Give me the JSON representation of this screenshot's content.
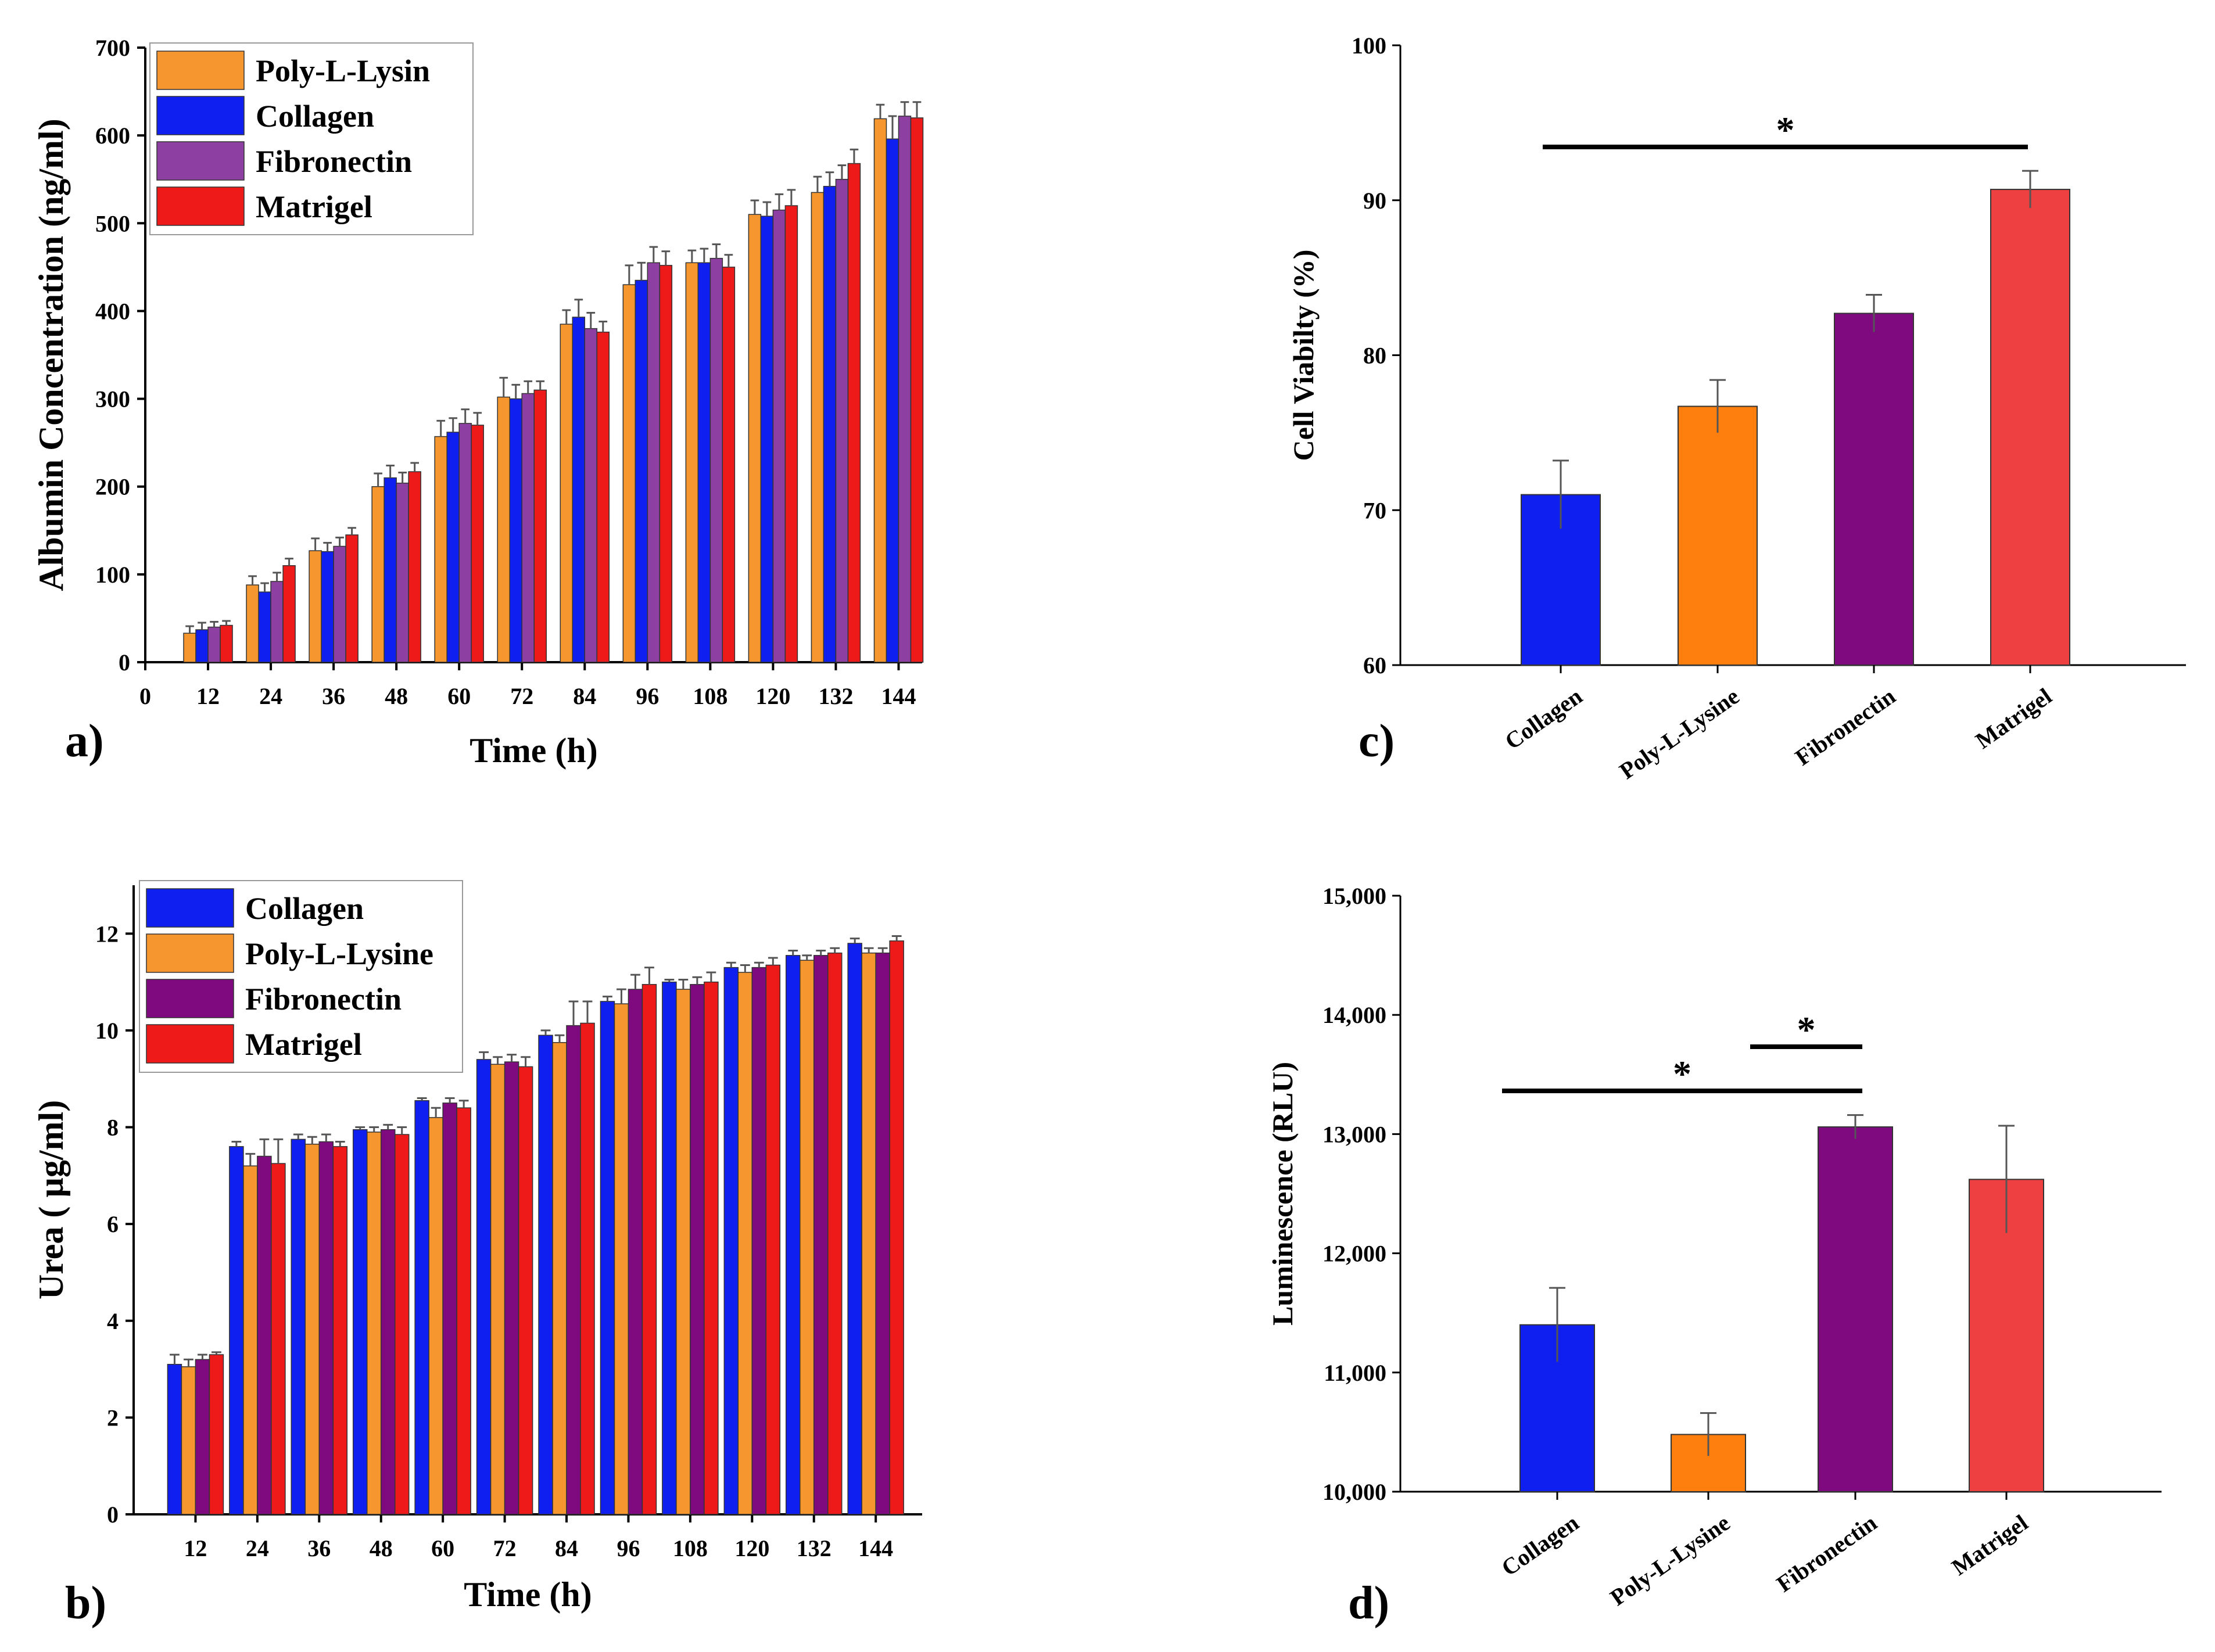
{
  "chart_data": [
    {
      "type": "bar",
      "panel_label": "a)",
      "xlabel": "Time (h)",
      "ylabel": "Albumin Concentration (ng/ml)",
      "ylim": [
        0,
        700
      ],
      "yticks": [
        "0",
        "100",
        "200",
        "300",
        "400",
        "500",
        "600",
        "700"
      ],
      "xticks": [
        "0",
        "12",
        "24",
        "36",
        "48",
        "60",
        "72",
        "84",
        "96",
        "108",
        "120",
        "132",
        "144"
      ],
      "categories": [
        "12",
        "24",
        "36",
        "48",
        "60",
        "72",
        "84",
        "96",
        "108",
        "120",
        "132",
        "144"
      ],
      "legend": [
        "Poly-L-Lysin",
        "Collagen",
        "Fibronectin",
        "Matrigel"
      ],
      "series": [
        {
          "name": "Poly-L-Lysin",
          "color": "#f5962e",
          "values": [
            33,
            88,
            127,
            200,
            257,
            302,
            385,
            430,
            455,
            510,
            535,
            619
          ],
          "errors": [
            8,
            10,
            14,
            15,
            18,
            22,
            16,
            22,
            14,
            16,
            18,
            16
          ]
        },
        {
          "name": "Collagen",
          "color": "#0f1ff0",
          "values": [
            37,
            80,
            126,
            210,
            262,
            300,
            393,
            435,
            455,
            508,
            542,
            596
          ],
          "errors": [
            8,
            10,
            10,
            14,
            16,
            16,
            20,
            20,
            16,
            16,
            16,
            26
          ]
        },
        {
          "name": "Fibronectin",
          "color": "#8e3fa2",
          "values": [
            40,
            92,
            132,
            204,
            272,
            306,
            380,
            455,
            460,
            515,
            550,
            622
          ],
          "errors": [
            6,
            10,
            10,
            12,
            16,
            14,
            18,
            18,
            16,
            18,
            16,
            16
          ]
        },
        {
          "name": "Matrigel",
          "color": "#ee1a1a",
          "values": [
            42,
            110,
            145,
            217,
            270,
            310,
            376,
            452,
            450,
            520,
            568,
            620
          ],
          "errors": [
            5,
            8,
            8,
            10,
            14,
            10,
            12,
            16,
            14,
            18,
            16,
            18
          ]
        }
      ]
    },
    {
      "type": "bar",
      "panel_label": "b)",
      "xlabel": "Time (h)",
      "ylabel": "Urea ( µg/ml)",
      "ylim": [
        0,
        13
      ],
      "yticks": [
        "0",
        "2",
        "4",
        "6",
        "8",
        "10",
        "12"
      ],
      "categories": [
        "12",
        "24",
        "36",
        "48",
        "60",
        "72",
        "84",
        "96",
        "108",
        "120",
        "132",
        "144"
      ],
      "legend": [
        "Collagen",
        "Poly-L-Lysine",
        "Fibronectin",
        "Matrigel"
      ],
      "series": [
        {
          "name": "Collagen",
          "color": "#0f1ff0",
          "values": [
            3.1,
            7.6,
            7.75,
            7.95,
            8.55,
            9.4,
            9.9,
            10.6,
            11.0,
            11.3,
            11.55,
            11.8
          ],
          "errors": [
            0.2,
            0.1,
            0.1,
            0.05,
            0.05,
            0.15,
            0.1,
            0.1,
            0.05,
            0.1,
            0.1,
            0.1
          ]
        },
        {
          "name": "Poly-L-Lysine",
          "color": "#f5962e",
          "values": [
            3.05,
            7.2,
            7.65,
            7.9,
            8.2,
            9.3,
            9.75,
            10.55,
            10.85,
            11.2,
            11.45,
            11.6
          ],
          "errors": [
            0.15,
            0.25,
            0.15,
            0.1,
            0.2,
            0.15,
            0.15,
            0.3,
            0.2,
            0.15,
            0.1,
            0.1
          ]
        },
        {
          "name": "Fibronectin",
          "color": "#7f0a7f",
          "values": [
            3.2,
            7.4,
            7.7,
            7.95,
            8.5,
            9.35,
            10.1,
            10.85,
            10.95,
            11.3,
            11.55,
            11.6
          ],
          "errors": [
            0.1,
            0.35,
            0.15,
            0.1,
            0.1,
            0.15,
            0.5,
            0.3,
            0.15,
            0.1,
            0.1,
            0.1
          ]
        },
        {
          "name": "Matrigel",
          "color": "#ee1a1a",
          "values": [
            3.3,
            7.25,
            7.6,
            7.85,
            8.4,
            9.25,
            10.15,
            10.95,
            11.0,
            11.35,
            11.6,
            11.85
          ],
          "errors": [
            0.05,
            0.5,
            0.1,
            0.15,
            0.15,
            0.2,
            0.45,
            0.35,
            0.2,
            0.15,
            0.1,
            0.1
          ]
        }
      ]
    },
    {
      "type": "bar",
      "panel_label": "c)",
      "xlabel": "",
      "ylabel": "Cell Viabilty (%)",
      "ylim": [
        60,
        100
      ],
      "yticks": [
        "60",
        "70",
        "80",
        "90",
        "100"
      ],
      "categories": [
        "Collagen",
        "Poly-L-Lysine",
        "Fibronectin",
        "Matrigel"
      ],
      "colors": [
        "#0f1ff0",
        "#ff7f0e",
        "#7f0a7f",
        "#ee4040"
      ],
      "values": [
        71.0,
        76.7,
        82.7,
        90.7
      ],
      "errors": [
        2.2,
        1.7,
        1.2,
        1.2
      ],
      "significance": [
        {
          "from": 0,
          "to": 3,
          "label": "*"
        }
      ]
    },
    {
      "type": "bar",
      "panel_label": "d)",
      "xlabel": "",
      "ylabel": "Luminescence (RLU)",
      "ylim": [
        10000,
        15000
      ],
      "yticks": [
        "10,000",
        "11,000",
        "12,000",
        "13,000",
        "14,000",
        "15,000"
      ],
      "categories": [
        "Collagen",
        "Poly-L-Lysine",
        "Fibronectin",
        "Matrigel"
      ],
      "colors": [
        "#0f1ff0",
        "#ff7f0e",
        "#7f0a7f",
        "#ee4040"
      ],
      "values": [
        11400,
        10480,
        13060,
        12620
      ],
      "errors": [
        310,
        180,
        100,
        450
      ],
      "significance": [
        {
          "from": 0,
          "to": 2,
          "label": "*"
        },
        {
          "from": 1,
          "to": 2,
          "label": "*"
        }
      ]
    }
  ]
}
